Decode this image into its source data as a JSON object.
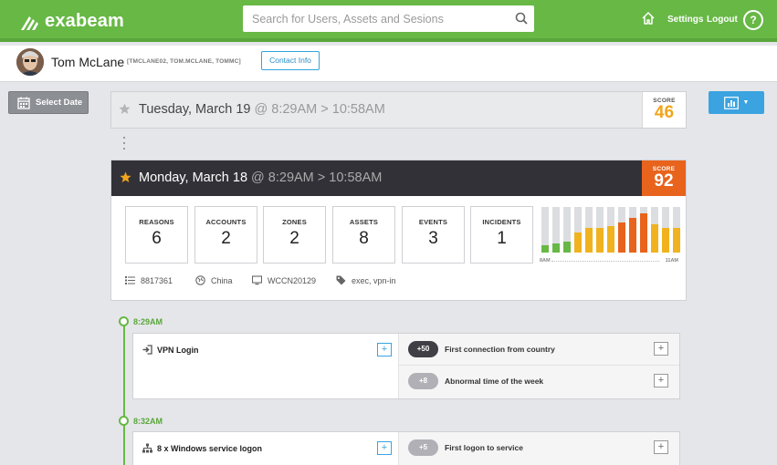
{
  "app": {
    "brand": "exabeam",
    "accent": "#67b845"
  },
  "search": {
    "placeholder": "Search for Users, Assets and Sesions"
  },
  "nav": {
    "settings": "Settings",
    "logout": "Logout",
    "help": "?"
  },
  "user": {
    "name": "Tom McLane",
    "aliases": "[TMCLANE02, TOM.MCLANE, TOMMC]",
    "contact_label": "Contact Info"
  },
  "toolbar": {
    "select_date": "Select Date"
  },
  "sessions": [
    {
      "date": "Tuesday, March 19",
      "time": " @ 8:29AM > 10:58AM",
      "score_label": "SCORE",
      "score": "46",
      "score_color": "#f0a51e"
    },
    {
      "date": "Monday, March 18",
      "time": " @ 8:29AM > 10:58AM",
      "score_label": "SCORE",
      "score": "92",
      "score_color": "#e8631c",
      "stats": [
        {
          "label": "REASONS",
          "value": "6"
        },
        {
          "label": "ACCOUNTS",
          "value": "2"
        },
        {
          "label": "ZONES",
          "value": "2"
        },
        {
          "label": "ASSETS",
          "value": "8"
        },
        {
          "label": "EVENTS",
          "value": "3"
        },
        {
          "label": "INCIDENTS",
          "value": "1"
        }
      ],
      "meta": {
        "id": "8817361",
        "location": "China",
        "host": "WCCN20129",
        "tags": "exec, vpn-in"
      }
    }
  ],
  "activity_chart": {
    "type": "bar",
    "x_start_label": "8AM",
    "x_end_label": "11AM",
    "values": [
      0.16,
      0.2,
      0.24,
      0.44,
      0.54,
      0.54,
      0.58,
      0.66,
      0.76,
      0.86,
      0.62,
      0.54,
      0.54
    ],
    "colors": [
      "#67b845",
      "#67b845",
      "#67b845",
      "#f0b21e",
      "#f0b21e",
      "#f0b21e",
      "#f0b21e",
      "#e8631c",
      "#e8631c",
      "#e8631c",
      "#f0b21e",
      "#f0b21e",
      "#f0b21e"
    ]
  },
  "timeline": [
    {
      "time": "8:29AM",
      "title": "VPN Login",
      "reasons": [
        {
          "score": "+50",
          "text": "First connection from country",
          "color": "#3f3f45"
        },
        {
          "score": "+8",
          "text": "Abnormal time of the week",
          "color": "#b0b0b6"
        }
      ]
    },
    {
      "time": "8:32AM",
      "title": "8 x Windows service logon",
      "reasons": [
        {
          "score": "+5",
          "text": "First logon to service",
          "color": "#b0b0b6"
        }
      ]
    }
  ]
}
